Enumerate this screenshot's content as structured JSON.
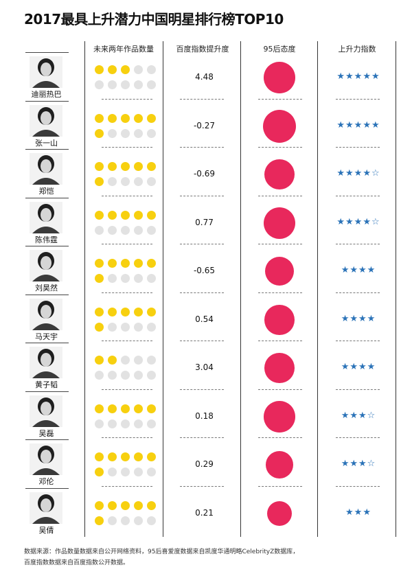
{
  "colors": {
    "dot_filled": "#f7d00f",
    "dot_empty": "#e2e2e2",
    "circle": "#e8285c",
    "star": "#2b73b8"
  },
  "chart_data": {
    "type": "table",
    "title": "2017最具上升潜力中国明星排行榜TOP10",
    "columns": [
      "未来两年作品数量",
      "百度指数提升度",
      "95后态度",
      "上升力指数"
    ],
    "rows": [
      {
        "name": "迪丽热巴",
        "works": 3,
        "baidu": "4.48",
        "attitude": 0.95,
        "stars": "★★★★★"
      },
      {
        "name": "张一山",
        "works": 6,
        "baidu": "-0.27",
        "attitude": 1.0,
        "stars": "★★★★★"
      },
      {
        "name": "郑恺",
        "works": 6,
        "baidu": "-0.69",
        "attitude": 0.93,
        "stars": "★★★★☆"
      },
      {
        "name": "陈伟霆",
        "works": 5,
        "baidu": "0.77",
        "attitude": 0.97,
        "stars": "★★★★☆"
      },
      {
        "name": "刘昊然",
        "works": 6,
        "baidu": "-0.65",
        "attitude": 0.89,
        "stars": "★★★★"
      },
      {
        "name": "马天宇",
        "works": 6,
        "baidu": "0.54",
        "attitude": 0.91,
        "stars": "★★★★"
      },
      {
        "name": "黄子韬",
        "works": 2,
        "baidu": "3.04",
        "attitude": 0.91,
        "stars": "★★★★"
      },
      {
        "name": "吴磊",
        "works": 5,
        "baidu": "0.18",
        "attitude": 0.95,
        "stars": "★★★☆"
      },
      {
        "name": "邓伦",
        "works": 6,
        "baidu": "0.29",
        "attitude": 0.83,
        "stars": "★★★☆"
      },
      {
        "name": "吴倩",
        "works": 6,
        "baidu": "0.21",
        "attitude": 0.75,
        "stars": "★★★"
      }
    ]
  },
  "source_lines": [
    "数据来源：作品数量数据来自公开网络资料，95后喜爱度数据来自凯度华通明略CelebrityZ数据库，",
    "百度指数数据来自百度指数公开数据。"
  ]
}
